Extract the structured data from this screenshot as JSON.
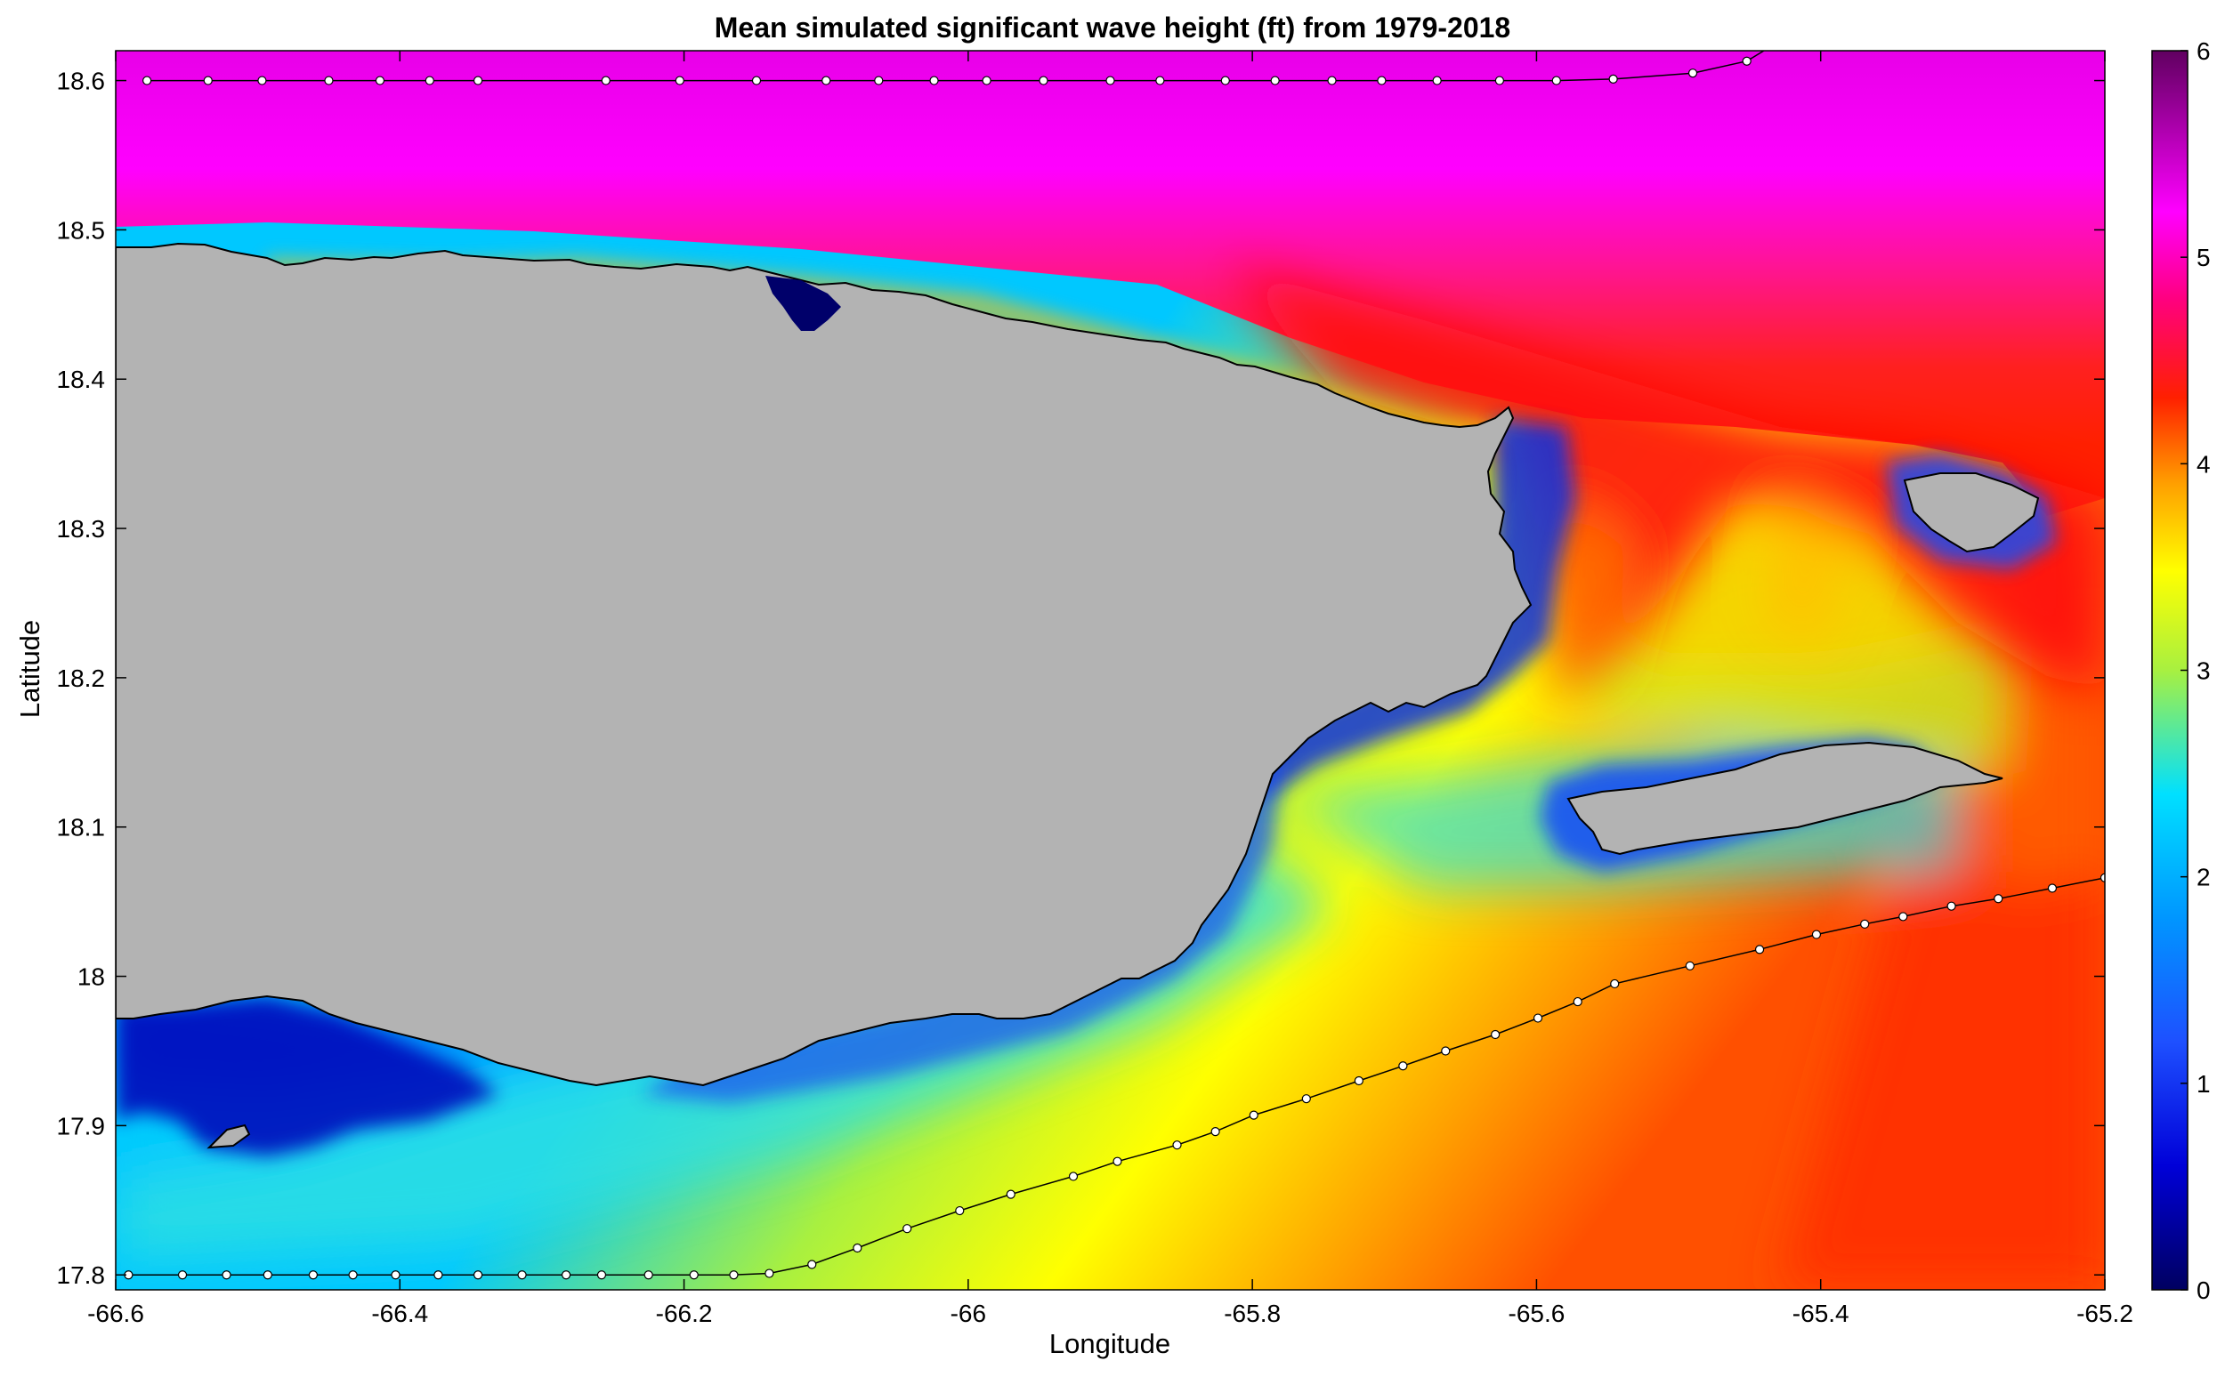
{
  "chart_data": {
    "type": "heatmap",
    "title": "Mean simulated significant wave height (ft) from 1979-2018",
    "xlabel": "Longitude",
    "ylabel": "Latitude",
    "xlim": [
      -66.6,
      -65.2
    ],
    "ylim": [
      17.79,
      18.62
    ],
    "xticks": [
      -66.6,
      -66.4,
      -66.2,
      -66,
      -65.8,
      -65.6,
      -65.4,
      -65.2
    ],
    "xtick_labels": [
      "-66.6",
      "-66.4",
      "-66.2",
      "-66",
      "-65.8",
      "-65.6",
      "-65.4",
      "-65.2"
    ],
    "yticks": [
      17.8,
      17.9,
      18,
      18.1,
      18.2,
      18.3,
      18.4,
      18.5,
      18.6
    ],
    "ytick_labels": [
      "17.8",
      "17.9",
      "18",
      "18.1",
      "18.2",
      "18.3",
      "18.4",
      "18.5",
      "18.6"
    ],
    "colorbar": {
      "range": [
        0,
        6
      ],
      "ticks": [
        0,
        1,
        2,
        3,
        4,
        5,
        6
      ],
      "tick_labels": [
        "0",
        "1",
        "2",
        "3",
        "4",
        "5",
        "6"
      ],
      "colors": [
        "#000060",
        "#0000d8",
        "#1e78ff",
        "#00e0ff",
        "#a8f040",
        "#ffff00",
        "#ffa000",
        "#ff2000",
        "#ff0080",
        "#ff00ff",
        "#600060"
      ]
    },
    "land_color": "#b3b3b3",
    "grid": false,
    "tracks": [
      {
        "points": [
          [
            -66.578,
            18.6
          ],
          [
            -66.535,
            18.6
          ],
          [
            -66.497,
            18.6
          ],
          [
            -66.45,
            18.6
          ],
          [
            -66.414,
            18.6
          ],
          [
            -66.379,
            18.6
          ],
          [
            -66.345,
            18.6
          ],
          [
            -66.255,
            18.6
          ],
          [
            -66.203,
            18.6
          ],
          [
            -66.149,
            18.6
          ],
          [
            -66.1,
            18.6
          ],
          [
            -66.063,
            18.6
          ],
          [
            -66.024,
            18.6
          ],
          [
            -65.987,
            18.6
          ],
          [
            -65.947,
            18.6
          ],
          [
            -65.9,
            18.6
          ],
          [
            -65.865,
            18.6
          ],
          [
            -65.819,
            18.6
          ],
          [
            -65.784,
            18.6
          ],
          [
            -65.744,
            18.6
          ],
          [
            -65.709,
            18.6
          ],
          [
            -65.67,
            18.6
          ],
          [
            -65.626,
            18.6
          ],
          [
            -65.586,
            18.6
          ],
          [
            -65.546,
            18.601
          ],
          [
            -65.49,
            18.605
          ],
          [
            -65.452,
            18.613
          ],
          [
            -65.44,
            18.62
          ]
        ],
        "markers": [
          [
            -66.578,
            18.6
          ],
          [
            -66.535,
            18.6
          ],
          [
            -66.497,
            18.6
          ],
          [
            -66.45,
            18.6
          ],
          [
            -66.414,
            18.6
          ],
          [
            -66.379,
            18.6
          ],
          [
            -66.345,
            18.6
          ],
          [
            -66.255,
            18.6
          ],
          [
            -66.203,
            18.6
          ],
          [
            -66.149,
            18.6
          ],
          [
            -66.1,
            18.6
          ],
          [
            -66.063,
            18.6
          ],
          [
            -66.024,
            18.6
          ],
          [
            -65.987,
            18.6
          ],
          [
            -65.947,
            18.6
          ],
          [
            -65.9,
            18.6
          ],
          [
            -65.865,
            18.6
          ],
          [
            -65.819,
            18.6
          ],
          [
            -65.784,
            18.6
          ],
          [
            -65.744,
            18.6
          ],
          [
            -65.709,
            18.6
          ],
          [
            -65.67,
            18.6
          ],
          [
            -65.626,
            18.6
          ],
          [
            -65.586,
            18.6
          ],
          [
            -65.546,
            18.601
          ],
          [
            -65.49,
            18.605
          ],
          [
            -65.452,
            18.613
          ]
        ]
      },
      {
        "points": [
          [
            -66.591,
            17.8
          ],
          [
            -66.553,
            17.8
          ],
          [
            -66.522,
            17.8
          ],
          [
            -66.493,
            17.8
          ],
          [
            -66.461,
            17.8
          ],
          [
            -66.433,
            17.8
          ],
          [
            -66.403,
            17.8
          ],
          [
            -66.373,
            17.8
          ],
          [
            -66.345,
            17.8
          ],
          [
            -66.314,
            17.8
          ],
          [
            -66.283,
            17.8
          ],
          [
            -66.258,
            17.8
          ],
          [
            -66.225,
            17.8
          ],
          [
            -66.193,
            17.8
          ],
          [
            -66.165,
            17.8
          ],
          [
            -66.14,
            17.801
          ],
          [
            -66.11,
            17.807
          ],
          [
            -66.078,
            17.818
          ],
          [
            -66.043,
            17.831
          ],
          [
            -66.006,
            17.843
          ],
          [
            -65.97,
            17.854
          ],
          [
            -65.926,
            17.866
          ],
          [
            -65.895,
            17.876
          ],
          [
            -65.853,
            17.887
          ],
          [
            -65.826,
            17.896
          ],
          [
            -65.799,
            17.907
          ],
          [
            -65.762,
            17.918
          ],
          [
            -65.725,
            17.93
          ],
          [
            -65.694,
            17.94
          ],
          [
            -65.664,
            17.95
          ],
          [
            -65.629,
            17.961
          ],
          [
            -65.599,
            17.972
          ],
          [
            -65.571,
            17.983
          ],
          [
            -65.545,
            17.995
          ],
          [
            -65.492,
            18.007
          ],
          [
            -65.443,
            18.018
          ],
          [
            -65.403,
            18.028
          ],
          [
            -65.369,
            18.035
          ],
          [
            -65.342,
            18.04
          ],
          [
            -65.308,
            18.047
          ],
          [
            -65.275,
            18.052
          ],
          [
            -65.237,
            18.059
          ],
          [
            -65.2,
            18.066
          ]
        ],
        "markers": [
          [
            -66.591,
            17.8
          ],
          [
            -66.553,
            17.8
          ],
          [
            -66.522,
            17.8
          ],
          [
            -66.493,
            17.8
          ],
          [
            -66.461,
            17.8
          ],
          [
            -66.433,
            17.8
          ],
          [
            -66.403,
            17.8
          ],
          [
            -66.373,
            17.8
          ],
          [
            -66.345,
            17.8
          ],
          [
            -66.314,
            17.8
          ],
          [
            -66.283,
            17.8
          ],
          [
            -66.258,
            17.8
          ],
          [
            -66.225,
            17.8
          ],
          [
            -66.193,
            17.8
          ],
          [
            -66.165,
            17.8
          ],
          [
            -66.14,
            17.801
          ],
          [
            -66.11,
            17.807
          ],
          [
            -66.078,
            17.818
          ],
          [
            -66.043,
            17.831
          ],
          [
            -66.006,
            17.843
          ],
          [
            -65.97,
            17.854
          ],
          [
            -65.926,
            17.866
          ],
          [
            -65.895,
            17.876
          ],
          [
            -65.853,
            17.887
          ],
          [
            -65.826,
            17.896
          ],
          [
            -65.799,
            17.907
          ],
          [
            -65.762,
            17.918
          ],
          [
            -65.725,
            17.93
          ],
          [
            -65.694,
            17.94
          ],
          [
            -65.664,
            17.95
          ],
          [
            -65.629,
            17.961
          ],
          [
            -65.599,
            17.972
          ],
          [
            -65.571,
            17.983
          ],
          [
            -65.545,
            17.995
          ],
          [
            -65.492,
            18.007
          ],
          [
            -65.443,
            18.018
          ],
          [
            -65.403,
            18.028
          ],
          [
            -65.369,
            18.035
          ],
          [
            -65.342,
            18.04
          ],
          [
            -65.308,
            18.047
          ],
          [
            -65.275,
            18.052
          ],
          [
            -65.237,
            18.059
          ],
          [
            -65.2,
            18.066
          ]
        ]
      }
    ]
  }
}
